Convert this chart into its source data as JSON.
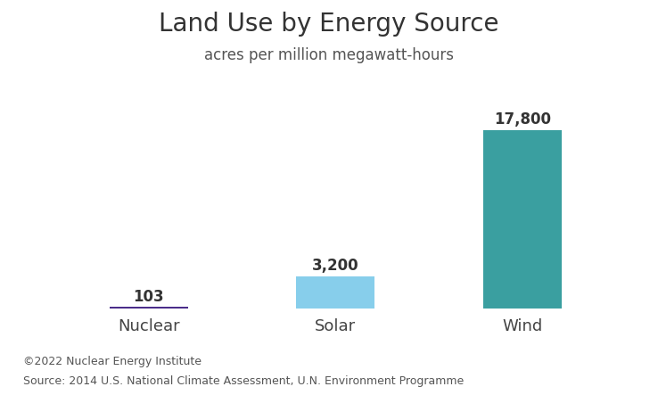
{
  "title": "Land Use by Energy Source",
  "subtitle": "acres per million megawatt-hours",
  "categories": [
    "Nuclear",
    "Solar",
    "Wind"
  ],
  "values": [
    103,
    3200,
    17800
  ],
  "bar_colors": [
    "#4b2d8a",
    "#87ceeb",
    "#3a9fa0"
  ],
  "value_labels": [
    "103",
    "3,200",
    "17,800"
  ],
  "bar_width": 0.42,
  "ylim": [
    0,
    20500
  ],
  "footnote_line1": "©2022 Nuclear Energy Institute",
  "footnote_line2": "Source: 2014 U.S. National Climate Assessment, U.N. Environment Programme",
  "background_color": "#ffffff",
  "title_fontsize": 20,
  "subtitle_fontsize": 12,
  "label_fontsize": 13,
  "value_fontsize": 12,
  "footnote_fontsize": 9,
  "fig_width": 7.38,
  "fig_height": 4.43,
  "fig_dpi": 100
}
